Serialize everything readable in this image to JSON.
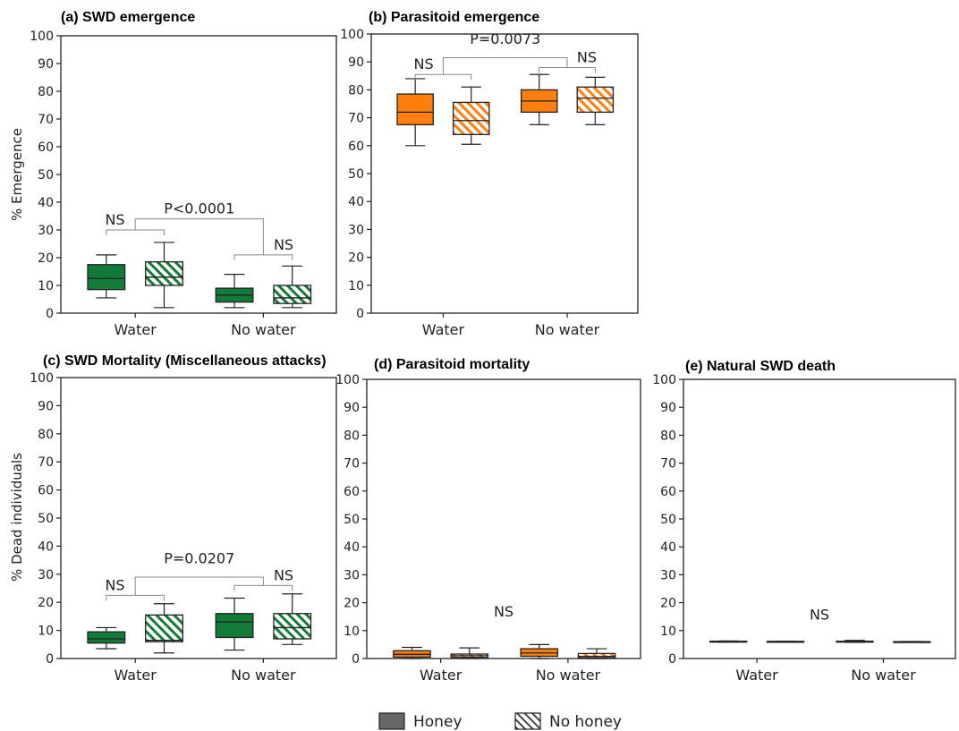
{
  "colors": {
    "swd": "#137b38",
    "parasitoid": "#ff7f0e",
    "axis": "#222222",
    "bracket": "#888888"
  },
  "legend": {
    "honey_label": "Honey",
    "nohoney_label": "No honey",
    "honey_fill": "#666666"
  },
  "y_labels": {
    "top": "% Emergence",
    "bottom": "% Dead individuals"
  },
  "chart_data": [
    {
      "id": "a",
      "type": "box",
      "title": "(a) SWD emergence",
      "color_key": "swd",
      "categories": [
        "Water",
        "No water"
      ],
      "ylim": [
        0,
        100
      ],
      "yticks": [
        0,
        10,
        20,
        30,
        40,
        50,
        60,
        70,
        80,
        90,
        100
      ],
      "series": [
        {
          "name": "Honey",
          "pattern": "solid",
          "boxes": [
            {
              "category": "Water",
              "min": 5.5,
              "q1": 8.5,
              "median": 12.5,
              "q3": 17.5,
              "max": 21
            },
            {
              "category": "No water",
              "min": 2,
              "q1": 4,
              "median": 6.5,
              "q3": 9,
              "max": 14
            }
          ]
        },
        {
          "name": "No honey",
          "pattern": "hatch",
          "boxes": [
            {
              "category": "Water",
              "min": 2,
              "q1": 10,
              "median": 13,
              "q3": 18.5,
              "max": 25.5
            },
            {
              "category": "No water",
              "min": 2,
              "q1": 3.5,
              "median": 5.5,
              "q3": 10,
              "max": 17
            }
          ]
        }
      ],
      "annotations": [
        {
          "text": "NS",
          "kind": "within",
          "category": "Water",
          "y": 30
        },
        {
          "text": "NS",
          "kind": "within",
          "category": "No water",
          "y": 21
        },
        {
          "text": "P<0.0001",
          "kind": "between",
          "y": 34,
          "label_y": 34
        }
      ]
    },
    {
      "id": "b",
      "type": "box",
      "title": "(b) Parasitoid emergence",
      "color_key": "parasitoid",
      "categories": [
        "Water",
        "No water"
      ],
      "ylim": [
        0,
        100
      ],
      "yticks": [
        0,
        10,
        20,
        30,
        40,
        50,
        60,
        70,
        80,
        90,
        100
      ],
      "series": [
        {
          "name": "Honey",
          "pattern": "solid",
          "boxes": [
            {
              "category": "Water",
              "min": 60,
              "q1": 67.5,
              "median": 72,
              "q3": 78.5,
              "max": 84
            },
            {
              "category": "No water",
              "min": 67.5,
              "q1": 72,
              "median": 76,
              "q3": 80,
              "max": 85.5
            }
          ]
        },
        {
          "name": "No honey",
          "pattern": "hatch",
          "boxes": [
            {
              "category": "Water",
              "min": 60.5,
              "q1": 64,
              "median": 69,
              "q3": 75.5,
              "max": 81
            },
            {
              "category": "No water",
              "min": 67.5,
              "q1": 72,
              "median": 77,
              "q3": 81,
              "max": 84.5
            }
          ]
        }
      ],
      "annotations": [
        {
          "text": "NS",
          "kind": "within",
          "category": "Water",
          "y": 85.5
        },
        {
          "text": "NS",
          "kind": "within",
          "category": "No water",
          "y": 88
        },
        {
          "text": "P=0.0073",
          "kind": "between",
          "y": 91.5,
          "label_y": 94.5
        }
      ]
    },
    {
      "id": "c",
      "type": "box",
      "title": "(c) SWD Mortality (Miscellaneous attacks)",
      "color_key": "swd",
      "categories": [
        "Water",
        "No water"
      ],
      "ylim": [
        0,
        100
      ],
      "yticks": [
        0,
        10,
        20,
        30,
        40,
        50,
        60,
        70,
        80,
        90,
        100
      ],
      "series": [
        {
          "name": "Honey",
          "pattern": "solid",
          "boxes": [
            {
              "category": "Water",
              "min": 3.5,
              "q1": 5.5,
              "median": 7,
              "q3": 9.5,
              "max": 11
            },
            {
              "category": "No water",
              "min": 3,
              "q1": 7.5,
              "median": 13,
              "q3": 16,
              "max": 21.5
            }
          ]
        },
        {
          "name": "No honey",
          "pattern": "hatch",
          "boxes": [
            {
              "category": "Water",
              "min": 2,
              "q1": 6,
              "median": 6.5,
              "q3": 15.5,
              "max": 19.5
            },
            {
              "category": "No water",
              "min": 5,
              "q1": 7,
              "median": 11,
              "q3": 16,
              "max": 23
            }
          ]
        }
      ],
      "annotations": [
        {
          "text": "NS",
          "kind": "within",
          "category": "Water",
          "y": 22.5
        },
        {
          "text": "NS",
          "kind": "within",
          "category": "No water",
          "y": 26
        },
        {
          "text": "P=0.0207",
          "kind": "between",
          "y": 29,
          "label_y": 32
        }
      ]
    },
    {
      "id": "d",
      "type": "box",
      "title": "(d) Parasitoid mortality",
      "color_key": "parasitoid",
      "categories": [
        "Water",
        "No water"
      ],
      "ylim": [
        0,
        100
      ],
      "yticks": [
        0,
        10,
        20,
        30,
        40,
        50,
        60,
        70,
        80,
        90,
        100
      ],
      "series": [
        {
          "name": "Honey",
          "pattern": "solid",
          "boxes": [
            {
              "category": "Water",
              "min": 0,
              "q1": 0.5,
              "median": 1.5,
              "q3": 2.8,
              "max": 4
            },
            {
              "category": "No water",
              "min": 0,
              "q1": 0.8,
              "median": 2,
              "q3": 3.5,
              "max": 5
            }
          ]
        },
        {
          "name": "No honey",
          "pattern": "hatch",
          "boxes": [
            {
              "category": "Water",
              "min": 0,
              "q1": 0.4,
              "median": 1,
              "q3": 1.6,
              "max": 3.8
            },
            {
              "category": "No water",
              "min": 0,
              "q1": 0.3,
              "median": 0.8,
              "q3": 1.8,
              "max": 3.5
            }
          ]
        }
      ],
      "annotations": [
        {
          "text": "NS",
          "kind": "center",
          "label_y": 15
        }
      ]
    },
    {
      "id": "e",
      "type": "box",
      "title": "(e) Natural SWD death",
      "color_key": "swd",
      "categories": [
        "Water",
        "No water"
      ],
      "ylim": [
        0,
        100
      ],
      "yticks": [
        0,
        10,
        20,
        30,
        40,
        50,
        60,
        70,
        80,
        90,
        100
      ],
      "series": [
        {
          "name": "Honey",
          "pattern": "solid",
          "boxes": [
            {
              "category": "Water",
              "min": 5.9,
              "q1": 6.0,
              "median": 6.1,
              "q3": 6.2,
              "max": 6.3
            },
            {
              "category": "No water",
              "min": 5.8,
              "q1": 5.9,
              "median": 6.0,
              "q3": 6.2,
              "max": 6.5
            }
          ]
        },
        {
          "name": "No honey",
          "pattern": "hatch",
          "boxes": [
            {
              "category": "Water",
              "min": 6.0,
              "q1": 6.05,
              "median": 6.1,
              "q3": 6.15,
              "max": 6.2
            },
            {
              "category": "No water",
              "min": 5.9,
              "q1": 5.95,
              "median": 6.0,
              "q3": 6.05,
              "max": 6.1
            }
          ]
        }
      ],
      "annotations": [
        {
          "text": "NS",
          "kind": "center",
          "label_y": 14
        }
      ]
    }
  ]
}
